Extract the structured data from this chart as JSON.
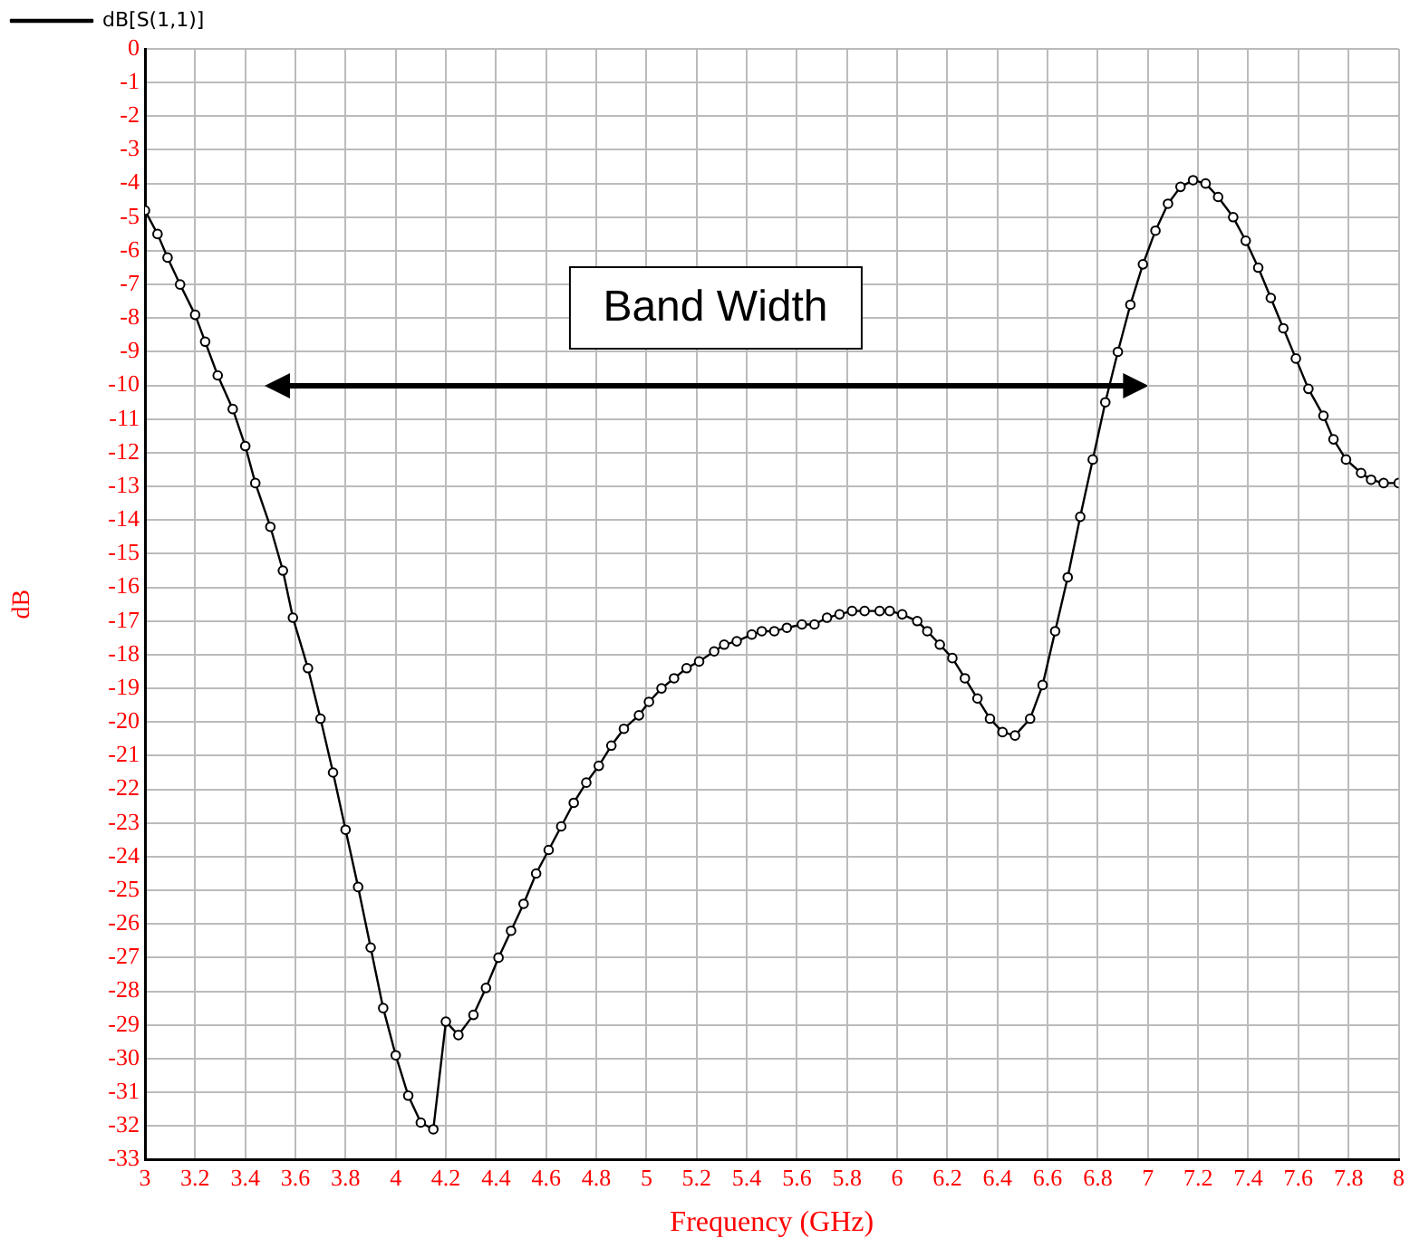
{
  "chart_data": {
    "type": "line",
    "xlabel": "Frequency (GHz)",
    "ylabel": "dB",
    "annotations": [
      "Band Width"
    ],
    "xlim": [
      3,
      8
    ],
    "ylim": [
      -33,
      0
    ],
    "xticks": [
      3,
      3.2,
      3.4,
      3.6,
      3.8,
      4,
      4.2,
      4.4,
      4.6,
      4.8,
      5,
      5.2,
      5.4,
      5.6,
      5.8,
      6,
      6.2,
      6.4,
      6.6,
      6.8,
      7,
      7.2,
      7.4,
      7.6,
      7.8,
      8
    ],
    "yticks": [
      0,
      -1,
      -2,
      -3,
      -4,
      -5,
      -6,
      -7,
      -8,
      -9,
      -10,
      -11,
      -12,
      -13,
      -14,
      -15,
      -16,
      -17,
      -18,
      -19,
      -20,
      -21,
      -22,
      -23,
      -24,
      -25,
      -26,
      -27,
      -28,
      -29,
      -30,
      -31,
      -32,
      -33
    ],
    "grid": true,
    "legend": "top left",
    "marker": "circle",
    "line_style": "solid",
    "series": [
      {
        "name": "dB[S(1,1)]",
        "color": "#000000",
        "x": [
          3.0,
          3.05,
          3.09,
          3.14,
          3.2,
          3.24,
          3.29,
          3.35,
          3.4,
          3.44,
          3.5,
          3.55,
          3.59,
          3.65,
          3.7,
          3.75,
          3.8,
          3.85,
          3.9,
          3.95,
          4.0,
          4.05,
          4.1,
          4.15,
          4.2,
          4.25,
          4.31,
          4.36,
          4.41,
          4.46,
          4.51,
          4.56,
          4.61,
          4.66,
          4.71,
          4.76,
          4.81,
          4.86,
          4.91,
          4.97,
          5.01,
          5.06,
          5.11,
          5.16,
          5.21,
          5.27,
          5.31,
          5.36,
          5.42,
          5.46,
          5.51,
          5.56,
          5.62,
          5.67,
          5.72,
          5.77,
          5.82,
          5.87,
          5.93,
          5.97,
          6.02,
          6.08,
          6.12,
          6.17,
          6.22,
          6.27,
          6.32,
          6.37,
          6.42,
          6.47,
          6.53,
          6.58,
          6.63,
          6.68,
          6.73,
          6.78,
          6.83,
          6.88,
          6.93,
          6.98,
          7.03,
          7.08,
          7.13,
          7.18,
          7.23,
          7.28,
          7.34,
          7.39,
          7.44,
          7.49,
          7.54,
          7.59,
          7.64,
          7.7,
          7.74,
          7.79,
          7.85,
          7.89,
          7.94,
          8.0
        ],
        "values": [
          -4.8,
          -5.5,
          -6.2,
          -7.0,
          -7.9,
          -8.7,
          -9.7,
          -10.7,
          -11.8,
          -12.9,
          -14.2,
          -15.5,
          -16.9,
          -18.4,
          -19.9,
          -21.5,
          -23.2,
          -24.9,
          -26.7,
          -28.5,
          -29.9,
          -31.1,
          -31.9,
          -32.1,
          -28.9,
          -29.3,
          -28.7,
          -27.9,
          -27.0,
          -26.2,
          -25.4,
          -24.5,
          -23.8,
          -23.1,
          -22.4,
          -21.8,
          -21.3,
          -20.7,
          -20.2,
          -19.8,
          -19.4,
          -19.0,
          -18.7,
          -18.4,
          -18.2,
          -17.9,
          -17.7,
          -17.6,
          -17.4,
          -17.3,
          -17.3,
          -17.2,
          -17.1,
          -17.1,
          -16.9,
          -16.8,
          -16.7,
          -16.7,
          -16.7,
          -16.7,
          -16.8,
          -17.0,
          -17.3,
          -17.7,
          -18.1,
          -18.7,
          -19.3,
          -19.9,
          -20.3,
          -20.4,
          -19.9,
          -18.9,
          -17.3,
          -15.7,
          -13.9,
          -12.2,
          -10.5,
          -9.0,
          -7.6,
          -6.4,
          -5.4,
          -4.6,
          -4.1,
          -3.9,
          -4.0,
          -4.4,
          -5.0,
          -5.7,
          -6.5,
          -7.4,
          -8.3,
          -9.2,
          -10.1,
          -10.9,
          -11.6,
          -12.2,
          -12.6,
          -12.8,
          -12.9,
          -12.9
        ]
      }
    ]
  }
}
